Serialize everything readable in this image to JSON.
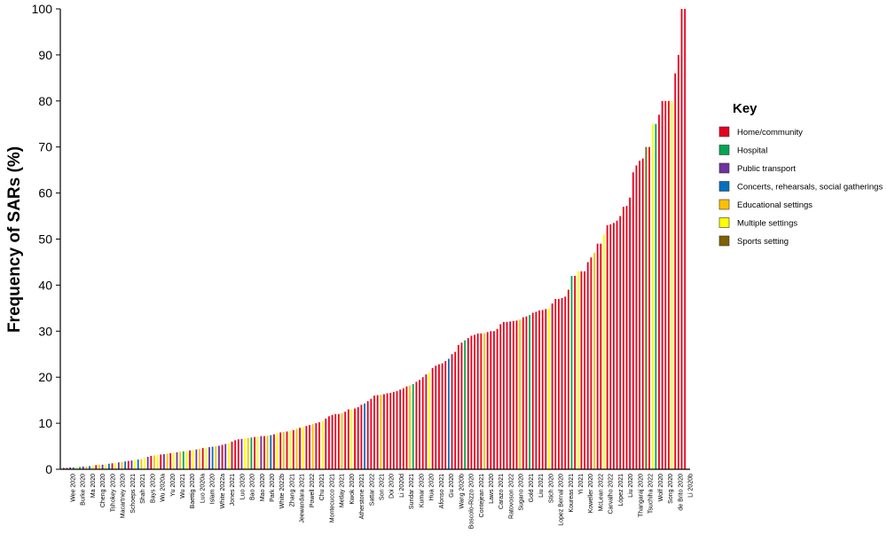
{
  "chart_data": {
    "type": "bar",
    "ylabel": "Frequency of SARs (%)",
    "ylim": [
      0,
      100
    ],
    "yticks": [
      0,
      10,
      20,
      30,
      40,
      50,
      60,
      70,
      80,
      90,
      100
    ],
    "legend": {
      "title": "Key",
      "placement": "right",
      "items": [
        {
          "name": "Home/community",
          "color": "#e8001c"
        },
        {
          "name": "Hospital",
          "color": "#00a651"
        },
        {
          "name": "Public transport",
          "color": "#7030a0"
        },
        {
          "name": "Concerts, rehearsals, social gatherings",
          "color": "#0070c0"
        },
        {
          "name": "Educational settings",
          "color": "#ffc000"
        },
        {
          "name": "Multiple settings",
          "color": "#ffff00"
        },
        {
          "name": "Sports setting",
          "color": "#806000"
        }
      ]
    },
    "category_labels": [
      "Wee 2020",
      "Burke 2020",
      "Ma 2020",
      "Cheng 2020",
      "Tshokey 2020",
      "Macartney 2020",
      "Schoeps 2021",
      "Shah 2021",
      "Bays 2020",
      "Wu 2020a",
      "Yu 2020",
      "Wu 2021",
      "Baettig 2020",
      "Luo 2020a",
      "Islam 2020",
      "White 2022a",
      "Jones 2021",
      "Luo 2020",
      "Bao 2020",
      "Mao 2020",
      "Park 2020",
      "White 2022b",
      "Zhang 2021",
      "Jeewandara 2021",
      "Powell 2022",
      "Chu 2021",
      "Montecucco 2021",
      "Metlay 2021",
      "Kwok 2020",
      "Atherstone 2021",
      "Sattar 2022",
      "Son 2021",
      "Doi 2020",
      "Li 2020d",
      "Sundar 2021",
      "Kumar 2020",
      "Hua 2020",
      "Afonso 2021",
      "Gu 2020",
      "Wang 2020b",
      "Boscolo-Rizzo 2020",
      "Contejean 2021",
      "Laws 2020",
      "Carazo 2021",
      "Ratovoson 2022",
      "Sugano 2020",
      "Gold 2021",
      "Liu 2021",
      "Stich 2020",
      "Lopez Bernal 2020",
      "Koureas 2021",
      "Yi 2021",
      "Koweller 2020",
      "McLean 2022",
      "Carvalho 2022",
      "López 2021",
      "Liu 2020",
      "Thangaraj 2020",
      "Tsuchiha 2022",
      "Wolf 2020",
      "Song 2020",
      "de Brito 2020",
      "Li 2020b"
    ],
    "settings": [
      "home",
      "hospital",
      "public_transport",
      "concerts",
      "educational",
      "multiple",
      "sports"
    ],
    "bars": [
      {
        "v": 0.3,
        "s": 2
      },
      {
        "v": 0.3,
        "s": 0
      },
      {
        "v": 0.4,
        "s": 2
      },
      {
        "v": 0.4,
        "s": 3
      },
      {
        "v": 0.5,
        "s": 5
      },
      {
        "v": 0.5,
        "s": 1
      },
      {
        "v": 0.6,
        "s": 2
      },
      {
        "v": 0.6,
        "s": 4
      },
      {
        "v": 0.7,
        "s": 3
      },
      {
        "v": 0.8,
        "s": 5
      },
      {
        "v": 0.9,
        "s": 0
      },
      {
        "v": 1.0,
        "s": 4
      },
      {
        "v": 1.0,
        "s": 2
      },
      {
        "v": 1.1,
        "s": 5
      },
      {
        "v": 1.2,
        "s": 3
      },
      {
        "v": 1.3,
        "s": 0
      },
      {
        "v": 1.4,
        "s": 5
      },
      {
        "v": 1.5,
        "s": 2
      },
      {
        "v": 1.6,
        "s": 4
      },
      {
        "v": 1.7,
        "s": 3
      },
      {
        "v": 1.8,
        "s": 0
      },
      {
        "v": 1.9,
        "s": 2
      },
      {
        "v": 2.0,
        "s": 5
      },
      {
        "v": 2.1,
        "s": 3
      },
      {
        "v": 2.2,
        "s": 4
      },
      {
        "v": 2.5,
        "s": 5
      },
      {
        "v": 2.7,
        "s": 2
      },
      {
        "v": 2.9,
        "s": 0
      },
      {
        "v": 3.0,
        "s": 4
      },
      {
        "v": 3.1,
        "s": 5
      },
      {
        "v": 3.2,
        "s": 0
      },
      {
        "v": 3.3,
        "s": 2
      },
      {
        "v": 3.4,
        "s": 4
      },
      {
        "v": 3.5,
        "s": 0
      },
      {
        "v": 3.6,
        "s": 5
      },
      {
        "v": 3.7,
        "s": 2
      },
      {
        "v": 3.8,
        "s": 4
      },
      {
        "v": 3.9,
        "s": 1
      },
      {
        "v": 4.0,
        "s": 5
      },
      {
        "v": 4.1,
        "s": 0
      },
      {
        "v": 4.2,
        "s": 5
      },
      {
        "v": 4.3,
        "s": 2
      },
      {
        "v": 4.4,
        "s": 4
      },
      {
        "v": 4.6,
        "s": 0
      },
      {
        "v": 4.7,
        "s": 5
      },
      {
        "v": 4.8,
        "s": 2
      },
      {
        "v": 4.9,
        "s": 3
      },
      {
        "v": 5.0,
        "s": 4
      },
      {
        "v": 5.1,
        "s": 2
      },
      {
        "v": 5.3,
        "s": 0
      },
      {
        "v": 5.5,
        "s": 2
      },
      {
        "v": 5.7,
        "s": 5
      },
      {
        "v": 6.0,
        "s": 0
      },
      {
        "v": 6.3,
        "s": 0
      },
      {
        "v": 6.5,
        "s": 0
      },
      {
        "v": 6.6,
        "s": 2
      },
      {
        "v": 6.7,
        "s": 5
      },
      {
        "v": 6.8,
        "s": 4
      },
      {
        "v": 6.9,
        "s": 1
      },
      {
        "v": 7.0,
        "s": 0
      },
      {
        "v": 7.1,
        "s": 5
      },
      {
        "v": 7.2,
        "s": 2
      },
      {
        "v": 7.2,
        "s": 0
      },
      {
        "v": 7.3,
        "s": 4
      },
      {
        "v": 7.4,
        "s": 3
      },
      {
        "v": 7.6,
        "s": 0
      },
      {
        "v": 7.8,
        "s": 5
      },
      {
        "v": 8.0,
        "s": 0
      },
      {
        "v": 8.1,
        "s": 4
      },
      {
        "v": 8.2,
        "s": 0
      },
      {
        "v": 8.3,
        "s": 5
      },
      {
        "v": 8.5,
        "s": 0
      },
      {
        "v": 8.8,
        "s": 4
      },
      {
        "v": 9.0,
        "s": 0
      },
      {
        "v": 9.2,
        "s": 5
      },
      {
        "v": 9.4,
        "s": 0
      },
      {
        "v": 9.6,
        "s": 0
      },
      {
        "v": 9.8,
        "s": 4
      },
      {
        "v": 10.0,
        "s": 0
      },
      {
        "v": 10.2,
        "s": 0
      },
      {
        "v": 10.5,
        "s": 5
      },
      {
        "v": 11.0,
        "s": 0
      },
      {
        "v": 11.5,
        "s": 0
      },
      {
        "v": 11.8,
        "s": 0
      },
      {
        "v": 12.0,
        "s": 0
      },
      {
        "v": 12.0,
        "s": 0
      },
      {
        "v": 12.2,
        "s": 4
      },
      {
        "v": 12.5,
        "s": 0
      },
      {
        "v": 13.0,
        "s": 0
      },
      {
        "v": 13.0,
        "s": 5
      },
      {
        "v": 13.2,
        "s": 0
      },
      {
        "v": 13.5,
        "s": 0
      },
      {
        "v": 14.0,
        "s": 0
      },
      {
        "v": 14.3,
        "s": 3
      },
      {
        "v": 14.8,
        "s": 0
      },
      {
        "v": 15.3,
        "s": 0
      },
      {
        "v": 16.0,
        "s": 0
      },
      {
        "v": 16.1,
        "s": 0
      },
      {
        "v": 16.2,
        "s": 4
      },
      {
        "v": 16.3,
        "s": 0
      },
      {
        "v": 16.5,
        "s": 0
      },
      {
        "v": 16.6,
        "s": 0
      },
      {
        "v": 16.8,
        "s": 0
      },
      {
        "v": 17.0,
        "s": 0
      },
      {
        "v": 17.3,
        "s": 0
      },
      {
        "v": 17.6,
        "s": 0
      },
      {
        "v": 18.0,
        "s": 0
      },
      {
        "v": 18.2,
        "s": 4
      },
      {
        "v": 18.5,
        "s": 1
      },
      {
        "v": 19.0,
        "s": 0
      },
      {
        "v": 19.4,
        "s": 0
      },
      {
        "v": 20.0,
        "s": 0
      },
      {
        "v": 20.6,
        "s": 0
      },
      {
        "v": 21.0,
        "s": 5
      },
      {
        "v": 22.0,
        "s": 0
      },
      {
        "v": 22.5,
        "s": 0
      },
      {
        "v": 22.8,
        "s": 0
      },
      {
        "v": 23.0,
        "s": 0
      },
      {
        "v": 23.5,
        "s": 0
      },
      {
        "v": 24.0,
        "s": 3
      },
      {
        "v": 25.0,
        "s": 0
      },
      {
        "v": 25.5,
        "s": 0
      },
      {
        "v": 27.0,
        "s": 0
      },
      {
        "v": 27.5,
        "s": 0
      },
      {
        "v": 28.0,
        "s": 1
      },
      {
        "v": 28.5,
        "s": 0
      },
      {
        "v": 29.0,
        "s": 0
      },
      {
        "v": 29.2,
        "s": 0
      },
      {
        "v": 29.5,
        "s": 0
      },
      {
        "v": 29.5,
        "s": 0
      },
      {
        "v": 29.6,
        "s": 4
      },
      {
        "v": 29.8,
        "s": 0
      },
      {
        "v": 30.0,
        "s": 0
      },
      {
        "v": 30.0,
        "s": 0
      },
      {
        "v": 30.5,
        "s": 0
      },
      {
        "v": 31.5,
        "s": 0
      },
      {
        "v": 32.0,
        "s": 0
      },
      {
        "v": 32.0,
        "s": 0
      },
      {
        "v": 32.1,
        "s": 0
      },
      {
        "v": 32.2,
        "s": 0
      },
      {
        "v": 32.3,
        "s": 0
      },
      {
        "v": 32.5,
        "s": 4
      },
      {
        "v": 33.0,
        "s": 0
      },
      {
        "v": 33.2,
        "s": 0
      },
      {
        "v": 33.5,
        "s": 1
      },
      {
        "v": 34.0,
        "s": 0
      },
      {
        "v": 34.2,
        "s": 0
      },
      {
        "v": 34.5,
        "s": 0
      },
      {
        "v": 34.6,
        "s": 0
      },
      {
        "v": 34.8,
        "s": 0
      },
      {
        "v": 35.0,
        "s": 5
      },
      {
        "v": 36.0,
        "s": 0
      },
      {
        "v": 37.0,
        "s": 0
      },
      {
        "v": 37.0,
        "s": 0
      },
      {
        "v": 37.2,
        "s": 0
      },
      {
        "v": 37.5,
        "s": 0
      },
      {
        "v": 39.0,
        "s": 0
      },
      {
        "v": 42.0,
        "s": 1
      },
      {
        "v": 42.0,
        "s": 0
      },
      {
        "v": 43.0,
        "s": 5
      },
      {
        "v": 43.0,
        "s": 0
      },
      {
        "v": 43.0,
        "s": 0
      },
      {
        "v": 45.0,
        "s": 0
      },
      {
        "v": 46.0,
        "s": 0
      },
      {
        "v": 47.0,
        "s": 4
      },
      {
        "v": 49.0,
        "s": 0
      },
      {
        "v": 49.0,
        "s": 0
      },
      {
        "v": 51.0,
        "s": 5
      },
      {
        "v": 53.0,
        "s": 0
      },
      {
        "v": 53.2,
        "s": 0
      },
      {
        "v": 53.5,
        "s": 0
      },
      {
        "v": 54.0,
        "s": 0
      },
      {
        "v": 55.0,
        "s": 0
      },
      {
        "v": 57.0,
        "s": 0
      },
      {
        "v": 57.2,
        "s": 0
      },
      {
        "v": 59.0,
        "s": 0
      },
      {
        "v": 64.5,
        "s": 0
      },
      {
        "v": 66.0,
        "s": 0
      },
      {
        "v": 67.0,
        "s": 0
      },
      {
        "v": 67.5,
        "s": 0
      },
      {
        "v": 70.0,
        "s": 6
      },
      {
        "v": 70.0,
        "s": 0
      },
      {
        "v": 75.0,
        "s": 5
      },
      {
        "v": 75.0,
        "s": 1
      },
      {
        "v": 77.0,
        "s": 0
      },
      {
        "v": 80.0,
        "s": 0
      },
      {
        "v": 80.0,
        "s": 0
      },
      {
        "v": 80.0,
        "s": 0
      },
      {
        "v": 80.0,
        "s": 5
      },
      {
        "v": 86.0,
        "s": 0
      },
      {
        "v": 90.0,
        "s": 0
      },
      {
        "v": 100.0,
        "s": 0
      },
      {
        "v": 100.0,
        "s": 0
      }
    ]
  }
}
